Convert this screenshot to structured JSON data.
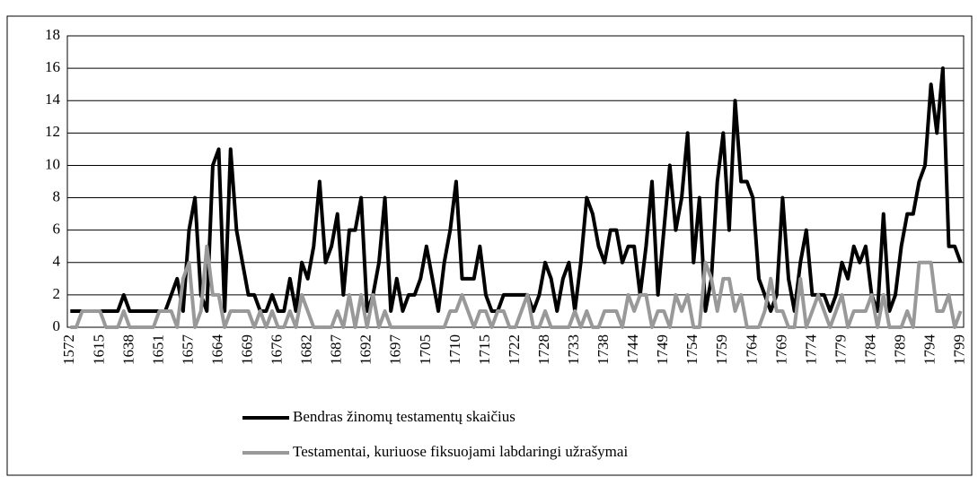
{
  "chart_data": {
    "type": "line",
    "categories": [
      "1572",
      null,
      null,
      null,
      null,
      "1615",
      null,
      null,
      null,
      null,
      "1638",
      null,
      null,
      null,
      null,
      "1651",
      null,
      null,
      null,
      null,
      "1657",
      null,
      null,
      null,
      null,
      "1664",
      null,
      null,
      null,
      null,
      "1669",
      null,
      null,
      null,
      null,
      "1676",
      null,
      null,
      null,
      null,
      "1682",
      null,
      null,
      null,
      null,
      "1687",
      null,
      null,
      null,
      null,
      "1692",
      null,
      null,
      null,
      null,
      "1697",
      null,
      null,
      null,
      null,
      "1705",
      null,
      null,
      null,
      null,
      "1710",
      null,
      null,
      null,
      null,
      "1715",
      null,
      null,
      null,
      null,
      "1722",
      null,
      null,
      null,
      null,
      "1728",
      null,
      null,
      null,
      null,
      "1733",
      null,
      null,
      null,
      null,
      "1738",
      null,
      null,
      null,
      null,
      "1744",
      null,
      null,
      null,
      null,
      "1749",
      null,
      null,
      null,
      null,
      "1754",
      null,
      null,
      null,
      null,
      "1759",
      null,
      null,
      null,
      null,
      "1764",
      null,
      null,
      null,
      null,
      "1769",
      null,
      null,
      null,
      null,
      "1774",
      null,
      null,
      null,
      null,
      "1779",
      null,
      null,
      null,
      null,
      "1784",
      null,
      null,
      null,
      null,
      "1789",
      null,
      null,
      null,
      null,
      "1794",
      null,
      null,
      null,
      null,
      "1799"
    ],
    "series": [
      {
        "name": "Bendras žinomų testamentų skaičius",
        "color": "#000000",
        "values": [
          1,
          1,
          1,
          1,
          1,
          1,
          1,
          1,
          1,
          2,
          1,
          1,
          1,
          1,
          1,
          1,
          1,
          2,
          3,
          1,
          6,
          8,
          2,
          1,
          10,
          11,
          1,
          11,
          6,
          4,
          2,
          2,
          1,
          1,
          2,
          1,
          1,
          3,
          1,
          4,
          3,
          5,
          9,
          4,
          5,
          7,
          2,
          6,
          6,
          8,
          1,
          2,
          4,
          8,
          1,
          3,
          1,
          2,
          2,
          3,
          5,
          3,
          1,
          4,
          6,
          9,
          3,
          3,
          3,
          5,
          2,
          1,
          1,
          2,
          2,
          2,
          2,
          2,
          1,
          2,
          4,
          3,
          1,
          3,
          4,
          1,
          4,
          8,
          7,
          5,
          4,
          6,
          6,
          4,
          5,
          5,
          2,
          5,
          9,
          2,
          6,
          10,
          6,
          8,
          12,
          4,
          8,
          1,
          3,
          9,
          12,
          6,
          14,
          9,
          9,
          8,
          3,
          2,
          1,
          2,
          8,
          3,
          1,
          4,
          6,
          2,
          2,
          2,
          1,
          2,
          4,
          3,
          5,
          4,
          5,
          2,
          1,
          7,
          1,
          2,
          5,
          7,
          7,
          9,
          10,
          15,
          12,
          16,
          5,
          5,
          4
        ]
      },
      {
        "name": "Testamentai, kuriuose fiksuojami labdaringi užrašymai",
        "color": "#999999",
        "values": [
          0,
          0,
          1,
          1,
          1,
          1,
          0,
          0,
          0,
          1,
          0,
          0,
          0,
          0,
          0,
          1,
          1,
          1,
          0,
          3,
          4,
          0,
          1,
          5,
          2,
          2,
          0,
          1,
          1,
          1,
          1,
          0,
          1,
          0,
          1,
          0,
          0,
          1,
          0,
          2,
          1,
          0,
          0,
          0,
          0,
          1,
          0,
          2,
          0,
          2,
          0,
          2,
          0,
          1,
          0,
          0,
          0,
          0,
          0,
          0,
          0,
          0,
          0,
          0,
          1,
          1,
          2,
          1,
          0,
          1,
          1,
          0,
          1,
          1,
          0,
          0,
          1,
          2,
          0,
          0,
          1,
          0,
          0,
          0,
          0,
          1,
          0,
          1,
          0,
          0,
          1,
          1,
          1,
          0,
          2,
          1,
          2,
          2,
          0,
          1,
          1,
          0,
          2,
          1,
          2,
          0,
          0,
          4,
          3,
          1,
          3,
          3,
          1,
          2,
          0,
          0,
          0,
          1,
          3,
          1,
          1,
          0,
          0,
          3,
          0,
          1,
          2,
          1,
          0,
          1,
          2,
          0,
          1,
          1,
          1,
          2,
          0,
          2,
          0,
          0,
          0,
          1,
          0,
          4,
          4,
          4,
          1,
          1,
          2,
          0,
          1
        ]
      }
    ],
    "ylim": [
      0,
      18
    ],
    "yticks": [
      0,
      2,
      4,
      6,
      8,
      10,
      12,
      14,
      16,
      18
    ],
    "grid": true
  }
}
